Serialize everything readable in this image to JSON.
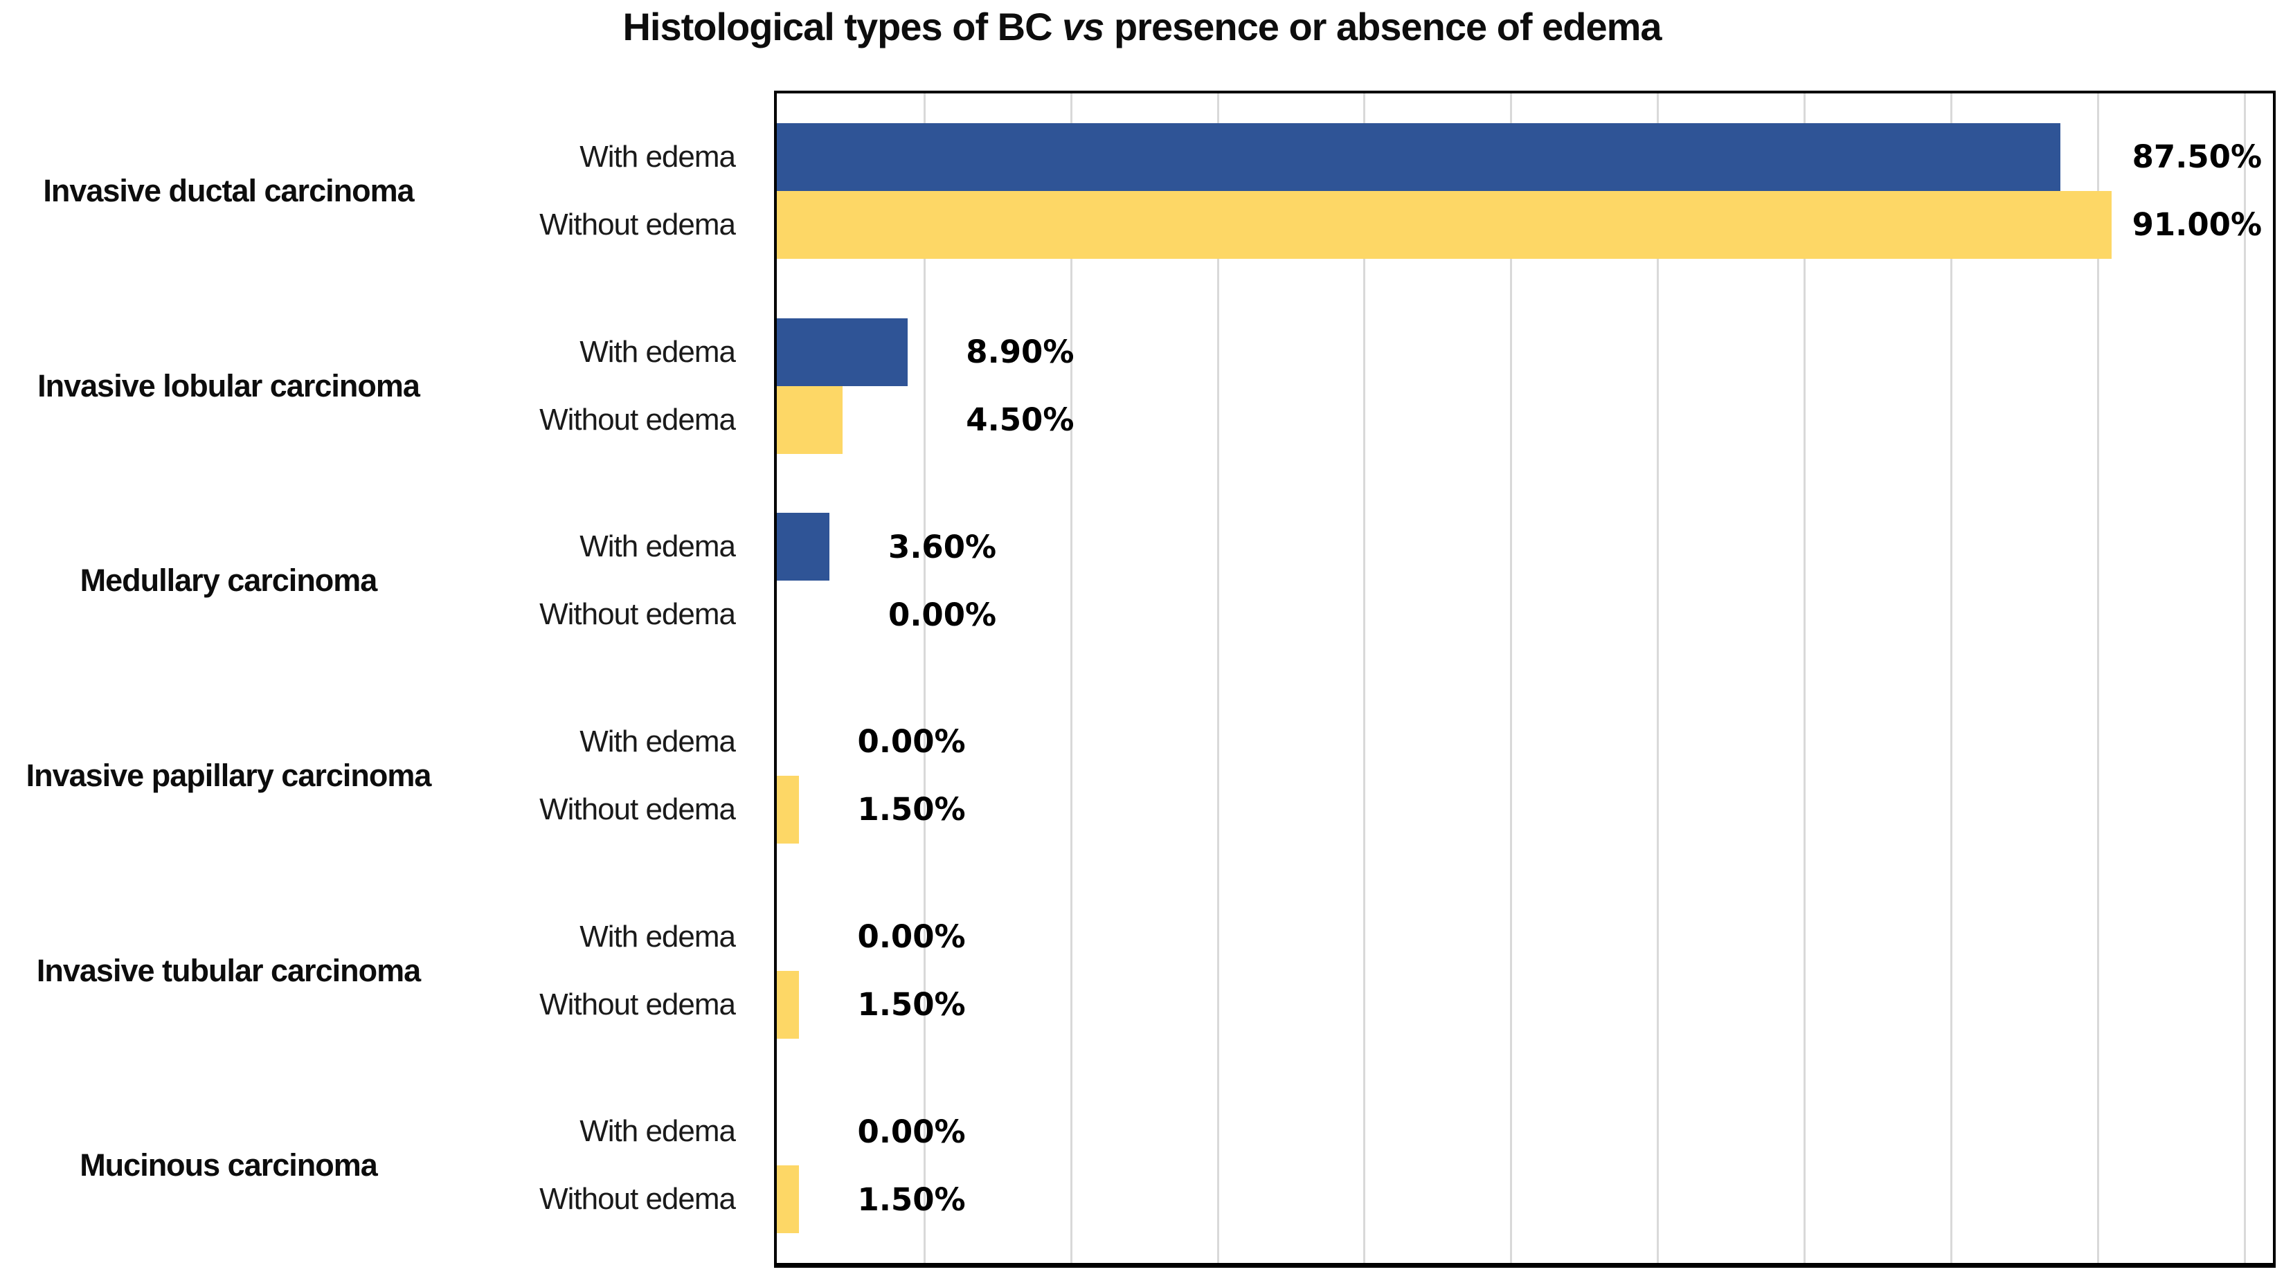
{
  "title": {
    "prefix": "Histological types of BC ",
    "italic": "vs",
    "suffix": " presence or absence of edema"
  },
  "chart_data": {
    "type": "bar",
    "orientation": "horizontal",
    "title": "Histological types of BC vs presence or absence of edema",
    "categories": [
      "Invasive ductal carcinoma",
      "Invasive lobular carcinoma",
      "Medullary carcinoma",
      "Invasive papillary carcinoma",
      "Invasive tubular carcinoma",
      "Mucinous carcinoma"
    ],
    "series": [
      {
        "name": "With edema",
        "color": "#2F5496",
        "values": [
          87.5,
          8.9,
          3.6,
          0.0,
          0.0,
          0.0
        ],
        "labels": [
          "87.50%",
          "8.90%",
          "3.60%",
          "0.00%",
          "0.00%",
          "0.00%"
        ]
      },
      {
        "name": "Without edema",
        "color": "#FDD766",
        "values": [
          91.0,
          4.5,
          0.0,
          1.5,
          1.5,
          1.5
        ],
        "labels": [
          "91.00%",
          "4.50%",
          "0.00%",
          "1.50%",
          "1.50%",
          "1.50%"
        ]
      }
    ],
    "xlim": [
      0,
      102
    ],
    "gridline_step": 10,
    "gridline_color": "#D9D9D9",
    "grid": true,
    "legend_position": "none",
    "value_label_color": "#000000",
    "plot_border_color": "#000000"
  }
}
